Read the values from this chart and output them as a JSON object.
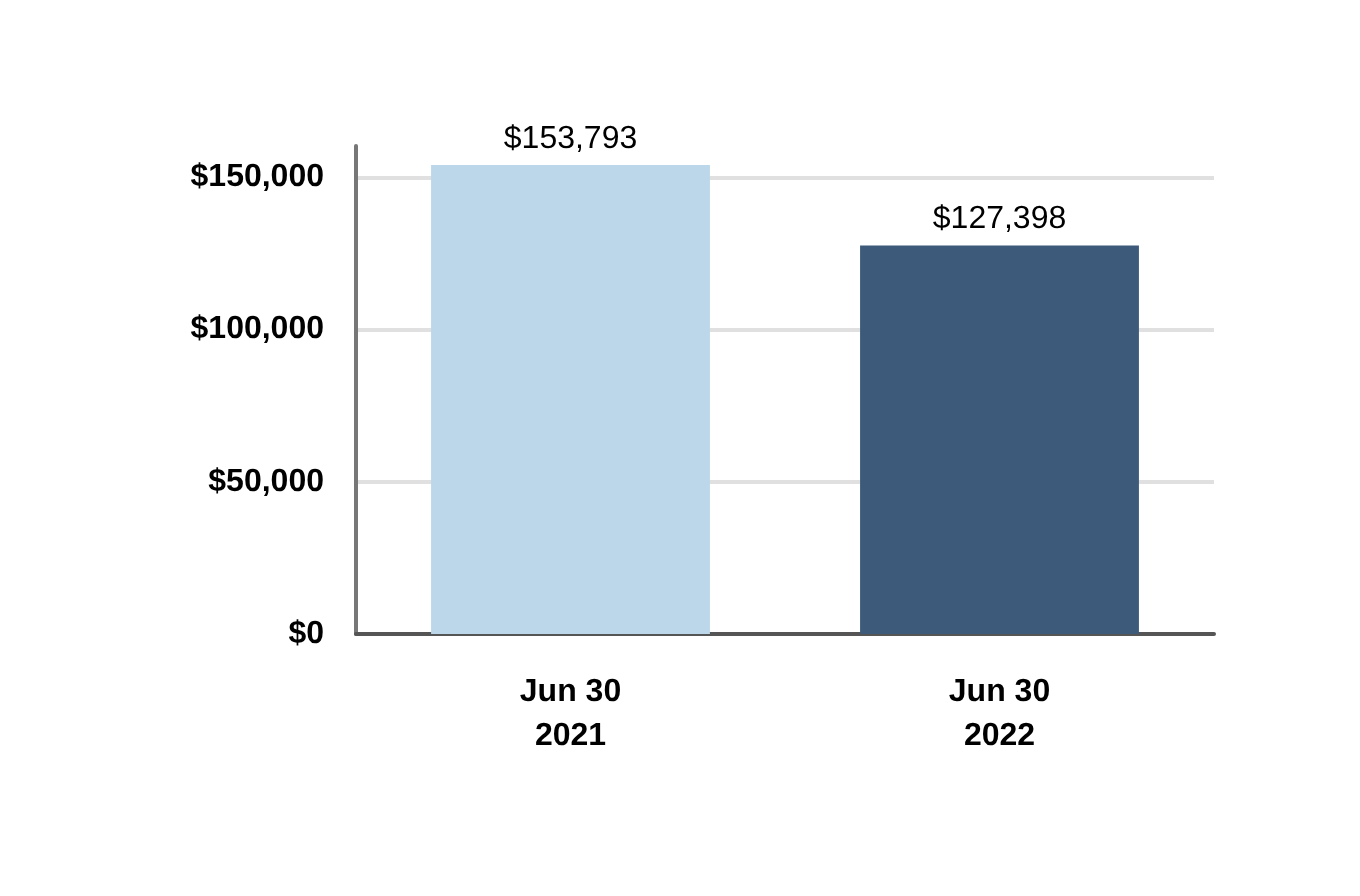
{
  "chart_data": {
    "type": "bar",
    "categories": [
      "Jun 30\n2021",
      "Jun 30\n2022"
    ],
    "values": [
      153793,
      127398
    ],
    "colors": [
      "#bcd7ea",
      "#3d5a7a"
    ],
    "value_labels": [
      "$153,793",
      "$127,398"
    ],
    "ylim": [
      0,
      160000
    ],
    "yticks": [
      {
        "value": 0,
        "label": "$0"
      },
      {
        "value": 50000,
        "label": "$50,000"
      },
      {
        "value": 100000,
        "label": "$100,000"
      },
      {
        "value": 150000,
        "label": "$150,000"
      }
    ],
    "grid": "y"
  }
}
